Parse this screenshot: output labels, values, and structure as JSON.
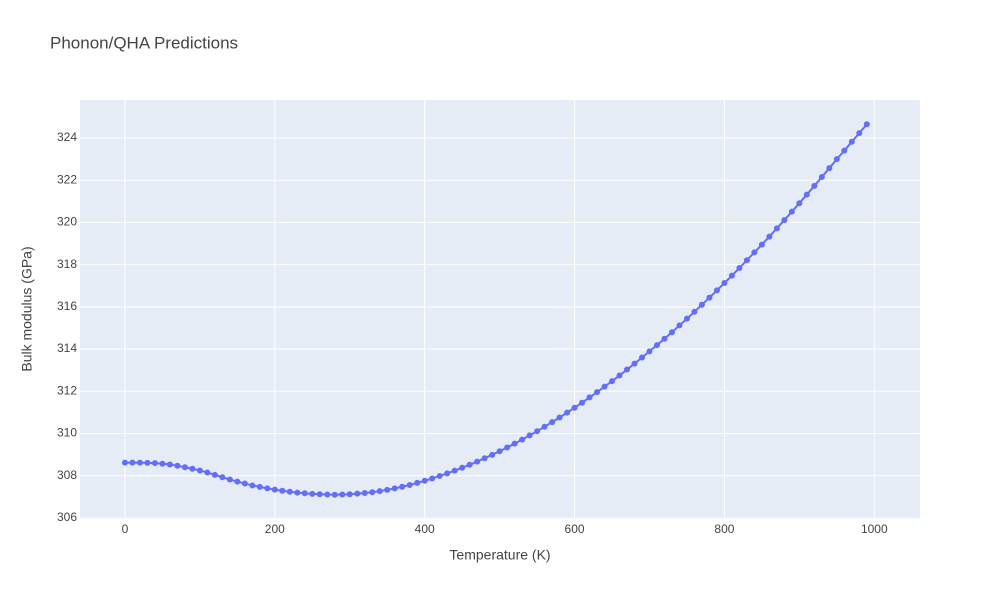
{
  "chart_data": {
    "type": "line",
    "title": "Phonon/QHA Predictions",
    "x_label": "Temperature (K)",
    "y_label": "Bulk modulus (GPa)",
    "x": [
      0,
      10,
      20,
      30,
      40,
      50,
      60,
      70,
      80,
      90,
      100,
      110,
      120,
      130,
      140,
      150,
      160,
      170,
      180,
      190,
      200,
      210,
      220,
      230,
      240,
      250,
      260,
      270,
      280,
      290,
      300,
      310,
      320,
      330,
      340,
      350,
      360,
      370,
      380,
      390,
      400,
      410,
      420,
      430,
      440,
      450,
      460,
      470,
      480,
      490,
      500,
      510,
      520,
      530,
      540,
      550,
      560,
      570,
      580,
      590,
      600,
      610,
      620,
      630,
      640,
      650,
      660,
      670,
      680,
      690,
      700,
      710,
      720,
      730,
      740,
      750,
      760,
      770,
      780,
      790,
      800,
      810,
      820,
      830,
      840,
      850,
      860,
      870,
      880,
      890,
      900,
      910,
      920,
      930,
      940,
      950,
      960,
      970,
      980,
      990
    ],
    "series": [
      {
        "name": "Bulk modulus",
        "color": "#636efa",
        "values": [
          308.62,
          308.62,
          308.62,
          308.61,
          308.6,
          308.57,
          308.53,
          308.47,
          308.4,
          308.33,
          308.25,
          308.15,
          308.04,
          307.93,
          307.82,
          307.72,
          307.63,
          307.54,
          307.47,
          307.4,
          307.34,
          307.29,
          307.24,
          307.2,
          307.17,
          307.14,
          307.12,
          307.11,
          307.1,
          307.11,
          307.12,
          307.15,
          307.18,
          307.22,
          307.27,
          307.33,
          307.4,
          307.48,
          307.56,
          307.66,
          307.76,
          307.87,
          307.99,
          308.11,
          308.24,
          308.38,
          308.52,
          308.67,
          308.83,
          308.99,
          309.16,
          309.34,
          309.52,
          309.71,
          309.91,
          310.11,
          310.32,
          310.54,
          310.76,
          310.99,
          311.22,
          311.46,
          311.71,
          311.96,
          312.22,
          312.48,
          312.75,
          313.03,
          313.31,
          313.6,
          313.89,
          314.19,
          314.49,
          314.8,
          315.12,
          315.44,
          315.77,
          316.1,
          316.44,
          316.78,
          317.13,
          317.48,
          317.84,
          318.21,
          318.58,
          318.95,
          319.33,
          319.72,
          320.11,
          320.51,
          320.91,
          321.32,
          321.73,
          322.15,
          322.57,
          323.0,
          323.4,
          323.82,
          324.23,
          324.65
        ]
      }
    ],
    "xlim": [
      -60,
      1061
    ],
    "ylim": [
      305.95,
      325.8
    ],
    "xticks": [
      0,
      200,
      400,
      600,
      800,
      1000
    ],
    "yticks": [
      306,
      308,
      310,
      312,
      314,
      316,
      318,
      320,
      322,
      324
    ],
    "grid": true
  }
}
